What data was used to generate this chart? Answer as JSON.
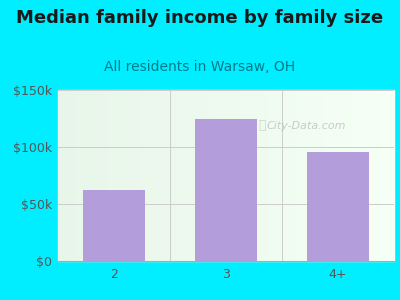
{
  "title": "Median family income by family size",
  "subtitle": "All residents in Warsaw, OH",
  "categories": [
    "2",
    "3",
    "4+"
  ],
  "values": [
    62000,
    125000,
    96000
  ],
  "bar_color": "#b39ddb",
  "background_outer": "#00eeff",
  "background_inner_left": "#e8f5e9",
  "background_inner_right": "#f0fff0",
  "title_color": "#1a1a1a",
  "subtitle_color": "#007a8a",
  "tick_label_color": "#555555",
  "ylim": [
    0,
    150000
  ],
  "yticks": [
    0,
    50000,
    100000,
    150000
  ],
  "watermark": "City-Data.com",
  "title_fontsize": 13,
  "subtitle_fontsize": 10,
  "tick_fontsize": 9
}
